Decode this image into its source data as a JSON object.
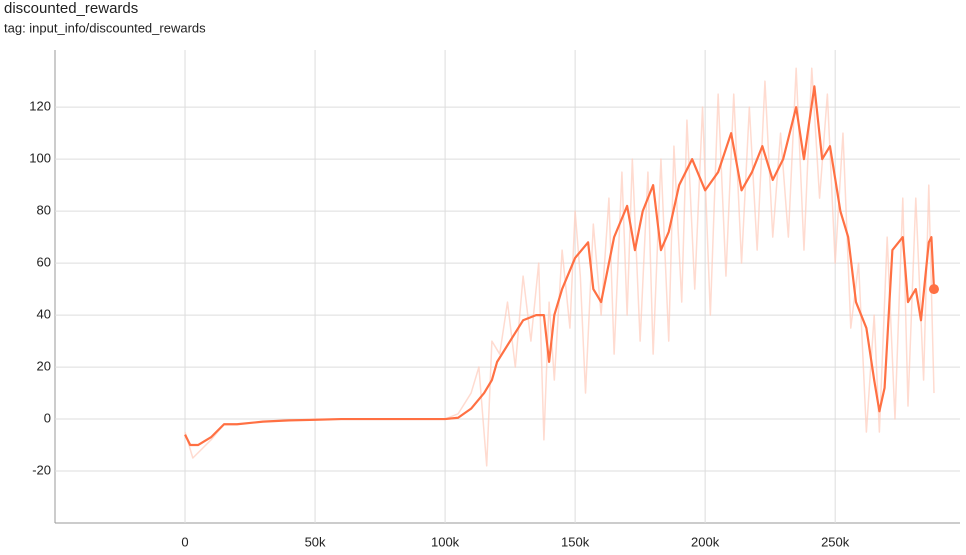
{
  "chart_data": {
    "type": "line",
    "title": "discounted_rewards",
    "subtitle": "tag: input_info/discounted_rewards",
    "xlim": [
      -50000,
      298000
    ],
    "ylim": [
      -40,
      142
    ],
    "xticks": [
      {
        "value": 0,
        "label": "0"
      },
      {
        "value": 50000,
        "label": "50k"
      },
      {
        "value": 100000,
        "label": "100k"
      },
      {
        "value": 150000,
        "label": "150k"
      },
      {
        "value": 200000,
        "label": "200k"
      },
      {
        "value": 250000,
        "label": "250k"
      }
    ],
    "yticks": [
      -20,
      0,
      20,
      40,
      60,
      80,
      100,
      120
    ],
    "grid": true,
    "series": [
      {
        "color": "#ffccbc",
        "x": [
          0,
          3000,
          6000,
          10000,
          15000,
          20000,
          30000,
          50000,
          80000,
          100000,
          105000,
          110000,
          113000,
          116000,
          118000,
          121000,
          124000,
          127000,
          130000,
          133000,
          136000,
          138000,
          140000,
          142000,
          145000,
          148000,
          150000,
          152000,
          154000,
          157000,
          160000,
          163000,
          165000,
          168000,
          170000,
          172000,
          175000,
          178000,
          180000,
          183000,
          186000,
          188000,
          191000,
          193000,
          196000,
          199000,
          202000,
          205000,
          208000,
          211000,
          214000,
          217000,
          220000,
          223000,
          226000,
          229000,
          232000,
          235000,
          238000,
          241000,
          244000,
          247000,
          250000,
          253000,
          256000,
          259000,
          262000,
          265000,
          267000,
          270000,
          273000,
          276000,
          278000,
          281000,
          284000,
          286000,
          288000
        ],
        "values": [
          -5,
          -15,
          -12,
          -8,
          -2,
          -2,
          -1,
          0,
          0,
          0,
          2,
          10,
          20,
          -18,
          30,
          25,
          45,
          20,
          55,
          30,
          60,
          -8,
          45,
          15,
          65,
          35,
          80,
          55,
          10,
          75,
          40,
          85,
          25,
          95,
          40,
          100,
          30,
          95,
          25,
          100,
          30,
          105,
          45,
          115,
          50,
          120,
          40,
          125,
          55,
          125,
          60,
          120,
          65,
          130,
          70,
          110,
          70,
          135,
          65,
          135,
          85,
          125,
          60,
          110,
          35,
          60,
          -5,
          40,
          -5,
          70,
          0,
          85,
          5,
          85,
          15,
          90,
          10
        ]
      },
      {
        "color": "#ff7043",
        "x": [
          0,
          2000,
          5000,
          10000,
          15000,
          20000,
          25000,
          30000,
          40000,
          50000,
          60000,
          80000,
          100000,
          105000,
          110000,
          115000,
          118000,
          120000,
          125000,
          130000,
          135000,
          138000,
          140000,
          142000,
          145000,
          150000,
          155000,
          157000,
          160000,
          165000,
          170000,
          173000,
          176000,
          180000,
          183000,
          186000,
          190000,
          195000,
          200000,
          205000,
          210000,
          214000,
          218000,
          222000,
          226000,
          230000,
          235000,
          238000,
          242000,
          245000,
          248000,
          252000,
          255000,
          258000,
          262000,
          265000,
          267000,
          269000,
          272000,
          276000,
          278000,
          281000,
          283000,
          286000,
          287000,
          288000
        ],
        "values": [
          -6,
          -10,
          -10,
          -7,
          -2,
          -2,
          -1.5,
          -1,
          -0.5,
          -0.3,
          0,
          0,
          0,
          0.5,
          4,
          10,
          15,
          22,
          30,
          38,
          40,
          40,
          22,
          40,
          50,
          62,
          68,
          50,
          45,
          70,
          82,
          65,
          80,
          90,
          65,
          72,
          90,
          100,
          88,
          95,
          110,
          88,
          95,
          105,
          92,
          100,
          120,
          100,
          128,
          100,
          105,
          80,
          70,
          45,
          35,
          15,
          3,
          12,
          65,
          70,
          45,
          50,
          38,
          68,
          70,
          50
        ]
      }
    ]
  }
}
